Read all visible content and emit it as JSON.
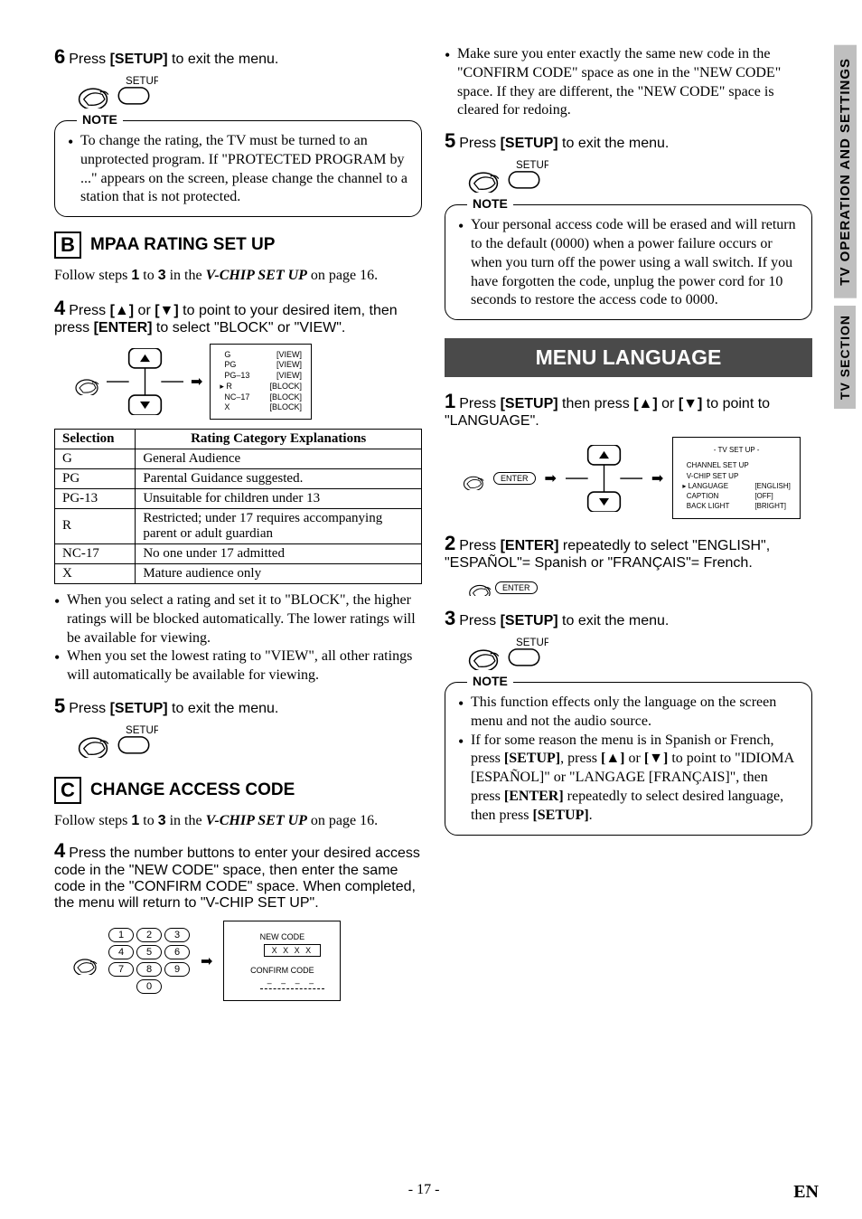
{
  "colors": {
    "bg": "#ffffff",
    "text": "#000000",
    "header_bg": "#4a4a4a",
    "sidebar_bg": "#bfbfbf"
  },
  "left": {
    "step6": {
      "num": "6",
      "text_a": "Press ",
      "bold": "[SETUP]",
      "text_b": " to exit the menu."
    },
    "setup_label": "SETUP",
    "note1_title": "NOTE",
    "note1_items": [
      "To change the rating, the TV must be turned to an unprotected program. If \"PROTECTED PROGRAM by ...\" appears on the screen, please change the channel to a station that is not protected."
    ],
    "sectionB": {
      "letter": "B",
      "title": "MPAA RATING SET UP"
    },
    "follow": {
      "a": "Follow steps ",
      "s1": "1",
      "b": " to ",
      "s3": "3",
      "c": " in the ",
      "ital": "V-CHIP SET UP",
      "d": " on page 16."
    },
    "step4": {
      "num": "4",
      "a": "Press ",
      "b": "[▲]",
      "c": " or ",
      "d": "[▼]",
      "e": " to point to your desired item, then press ",
      "f": "[ENTER]",
      "g": " to select \"BLOCK\" or \"VIEW\"."
    },
    "ratings_fig": {
      "items": [
        {
          "code": "G",
          "state": "[VIEW]"
        },
        {
          "code": "PG",
          "state": "[VIEW]"
        },
        {
          "code": "PG–13",
          "state": "[VIEW]"
        },
        {
          "code": "R",
          "state": "[BLOCK]"
        },
        {
          "code": "NC–17",
          "state": "[BLOCK]"
        },
        {
          "code": "X",
          "state": "[BLOCK]"
        }
      ],
      "pointer_row": 3
    },
    "table": {
      "headers": [
        "Selection",
        "Rating Category Explanations"
      ],
      "rows": [
        [
          "G",
          "General Audience"
        ],
        [
          "PG",
          "Parental Guidance suggested."
        ],
        [
          "PG-13",
          "Unsuitable for children under 13"
        ],
        [
          "R",
          "Restricted; under 17 requires accompanying parent or adult guardian"
        ],
        [
          "NC-17",
          "No one under 17 admitted"
        ],
        [
          "X",
          "Mature audience only"
        ]
      ]
    },
    "bullets_b": [
      "When you select a rating and set it to \"BLOCK\", the higher ratings will be blocked automatically. The lower ratings will be available for viewing.",
      "When you set the lowest rating to \"VIEW\", all other ratings will automatically be available for viewing."
    ],
    "step5": {
      "num": "5",
      "a": "Press ",
      "b": "[SETUP]",
      "c": " to exit the menu."
    },
    "sectionC": {
      "letter": "C",
      "title": "CHANGE ACCESS CODE"
    },
    "step4c": {
      "num": "4",
      "text": "Press the number buttons to enter your desired access code in the \"NEW CODE\" space, then enter the same code in the \"CONFIRM CODE\" space. When completed, the menu will return to \"V-CHIP SET UP\"."
    },
    "keypad": [
      "1",
      "2",
      "3",
      "4",
      "5",
      "6",
      "7",
      "8",
      "9",
      "0"
    ],
    "code_box": {
      "new": "NEW CODE",
      "new_val": "X X X X",
      "confirm": "CONFIRM CODE",
      "confirm_val": "– – – –"
    }
  },
  "right": {
    "top_bullets": [
      "Make sure you enter exactly the same new code in the \"CONFIRM CODE\" space as one in the \"NEW CODE\" space. If they are different, the \"NEW CODE\" space is cleared for redoing."
    ],
    "step5": {
      "num": "5",
      "a": "Press ",
      "b": "[SETUP]",
      "c": " to exit the menu."
    },
    "setup_label": "SETUP",
    "note2_title": "NOTE",
    "note2_items": [
      "Your personal access code will be erased and will return to the default (0000) when a power failure occurs or when you turn off the power using a wall switch. If you have forgotten the code, unplug the power cord for 10 seconds to restore the access code to 0000."
    ],
    "menu_lang_header": "MENU LANGUAGE",
    "step1": {
      "num": "1",
      "a": "Press ",
      "b": "[SETUP]",
      "c": " then press ",
      "d": "[▲]",
      "e": " or ",
      "f": "[▼]",
      "g": " to point to \"LANGUAGE\"."
    },
    "tv_setup": {
      "hdr": "- TV SET UP -",
      "rows": [
        {
          "lab": "CHANNEL SET UP",
          "val": ""
        },
        {
          "lab": "V-CHIP SET UP",
          "val": ""
        },
        {
          "lab": "LANGUAGE",
          "val": "[ENGLISH]",
          "selected": true
        },
        {
          "lab": "CAPTION",
          "val": "[OFF]"
        },
        {
          "lab": "BACK LIGHT",
          "val": "[BRIGHT]"
        }
      ]
    },
    "enter_label": "ENTER",
    "step2": {
      "num": "2",
      "a": "Press ",
      "b": "[ENTER]",
      "c": " repeatedly to select \"ENGLISH\", \"ESPAÑOL\"= Spanish or \"FRANÇAIS\"= French."
    },
    "step3": {
      "num": "3",
      "a": "Press ",
      "b": "[SETUP]",
      "c": " to exit the menu."
    },
    "note3_title": "NOTE",
    "note3_items": [
      "This function effects only the language on the screen menu and not the audio source.",
      "If for some reason the menu is in Spanish or French, press [SETUP], press [▲] or [▼] to point to \"IDIOMA [ESPAÑOL]\" or \"LANGAGE [FRANÇAIS]\", then press [ENTER] repeatedly to select desired language, then press [SETUP]."
    ]
  },
  "sidebar": [
    "TV OPERATION AND SETTINGS",
    "TV SECTION"
  ],
  "footer": {
    "page": "- 17 -",
    "lang": "EN"
  }
}
